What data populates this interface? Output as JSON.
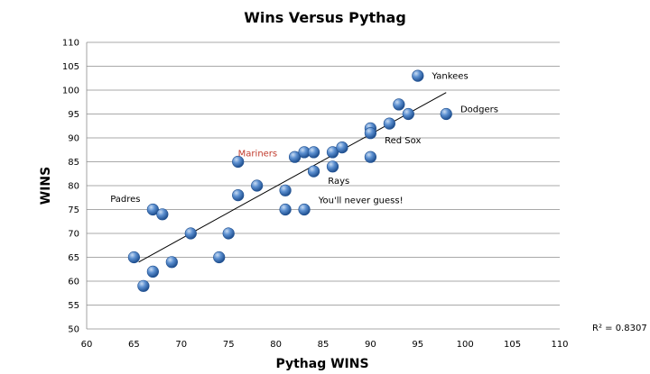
{
  "chart_data": {
    "type": "scatter",
    "title": "Wins Versus Pythag",
    "xlabel": "Pythag WINS",
    "ylabel": "WINS",
    "xlim": [
      60,
      110
    ],
    "ylim": [
      50,
      110
    ],
    "x_ticks": [
      "60",
      "65",
      "70",
      "75",
      "80",
      "85",
      "90",
      "95",
      "100",
      "105",
      "110"
    ],
    "y_ticks": [
      "50",
      "55",
      "60",
      "65",
      "70",
      "75",
      "80",
      "85",
      "90",
      "95",
      "100",
      "105",
      "110"
    ],
    "grid": true,
    "legend": "none",
    "marker_color": "#4f81bd",
    "trendline": {
      "from": [
        65.5,
        64
      ],
      "to": [
        98,
        99.5
      ],
      "r_squared_label": "R² = 0.8307"
    },
    "points": [
      {
        "x": 65,
        "y": 65
      },
      {
        "x": 66,
        "y": 59
      },
      {
        "x": 67,
        "y": 62
      },
      {
        "x": 67,
        "y": 75
      },
      {
        "x": 68,
        "y": 74
      },
      {
        "x": 69,
        "y": 64
      },
      {
        "x": 71,
        "y": 70
      },
      {
        "x": 74,
        "y": 65
      },
      {
        "x": 75,
        "y": 70
      },
      {
        "x": 76,
        "y": 78
      },
      {
        "x": 76,
        "y": 85
      },
      {
        "x": 78,
        "y": 80
      },
      {
        "x": 81,
        "y": 79
      },
      {
        "x": 81,
        "y": 75
      },
      {
        "x": 82,
        "y": 86
      },
      {
        "x": 83,
        "y": 87
      },
      {
        "x": 83,
        "y": 75
      },
      {
        "x": 84,
        "y": 87
      },
      {
        "x": 84,
        "y": 83
      },
      {
        "x": 86,
        "y": 87
      },
      {
        "x": 86,
        "y": 84
      },
      {
        "x": 87,
        "y": 88
      },
      {
        "x": 90,
        "y": 92
      },
      {
        "x": 90,
        "y": 91
      },
      {
        "x": 90,
        "y": 86
      },
      {
        "x": 92,
        "y": 93
      },
      {
        "x": 93,
        "y": 97
      },
      {
        "x": 94,
        "y": 95
      },
      {
        "x": 95,
        "y": 103
      },
      {
        "x": 98,
        "y": 95
      }
    ],
    "annotations": [
      {
        "text": "Yankees",
        "x": 96.5,
        "y": 103,
        "color": "#000000"
      },
      {
        "text": "Dodgers",
        "x": 99.5,
        "y": 96,
        "color": "#000000"
      },
      {
        "text": "Red Sox",
        "x": 91.5,
        "y": 89.5,
        "color": "#000000"
      },
      {
        "text": "Mariners",
        "x": 76,
        "y": 86.8,
        "color": "#c0392b"
      },
      {
        "text": "Rays",
        "x": 85.5,
        "y": 81,
        "color": "#000000"
      },
      {
        "text": "You'll never guess!",
        "x": 84.5,
        "y": 77,
        "color": "#000000"
      },
      {
        "text": "Padres",
        "x": 62.5,
        "y": 77.3,
        "color": "#000000"
      }
    ]
  }
}
